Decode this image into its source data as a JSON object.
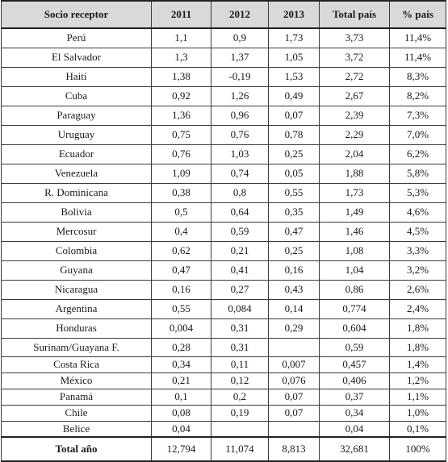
{
  "table": {
    "columns": [
      "Socio receptor",
      "2011",
      "2012",
      "2013",
      "Total país",
      "% país"
    ],
    "rows": [
      [
        "Perú",
        "1,1",
        "0,9",
        "1,73",
        "3,73",
        "11,4%"
      ],
      [
        "El Salvador",
        "1,3",
        "1,37",
        "1,05",
        "3,72",
        "11,4%"
      ],
      [
        "Haití",
        "1,38",
        "-0,19",
        "1,53",
        "2,72",
        "8,3%"
      ],
      [
        "Cuba",
        "0,92",
        "1,26",
        "0,49",
        "2,67",
        "8,2%"
      ],
      [
        "Paraguay",
        "1,36",
        "0,96",
        "0,07",
        "2,39",
        "7,3%"
      ],
      [
        "Uruguay",
        "0,75",
        "0,76",
        "0,78",
        "2,29",
        "7,0%"
      ],
      [
        "Ecuador",
        "0,76",
        "1,03",
        "0,25",
        "2,04",
        "6,2%"
      ],
      [
        "Venezuela",
        "1,09",
        "0,74",
        "0,05",
        "1,88",
        "5,8%"
      ],
      [
        "R. Dominicana",
        "0,38",
        "0,8",
        "0,55",
        "1,73",
        "5,3%"
      ],
      [
        "Bolivia",
        "0,5",
        "0,64",
        "0,35",
        "1,49",
        "4,6%"
      ],
      [
        "Mercosur",
        "0,4",
        "0,59",
        "0,47",
        "1,46",
        "4,5%"
      ],
      [
        "Colombia",
        "0,62",
        "0,21",
        "0,25",
        "1,08",
        "3,3%"
      ],
      [
        "Guyana",
        "0,47",
        "0,41",
        "0,16",
        "1,04",
        "3,2%"
      ],
      [
        "Nicaragua",
        "0,16",
        "0,27",
        "0,43",
        "0,86",
        "2,6%"
      ],
      [
        "Argentina",
        "0,55",
        "0,084",
        "0,14",
        "0,774",
        "2,4%"
      ],
      [
        "Honduras",
        "0,004",
        "0,31",
        "0,29",
        "0,604",
        "1,8%"
      ],
      [
        "Surinam/Guayana F.",
        "0,28",
        "0,31",
        "",
        "0,59",
        "1,8%"
      ],
      [
        "Costa Rica",
        "0,34",
        "0,11",
        "0,007",
        "0,457",
        "1,4%"
      ],
      [
        "México",
        "0,21",
        "0,12",
        "0,076",
        "0,406",
        "1,2%"
      ],
      [
        "Panamá",
        "0,1",
        "0,2",
        "0,07",
        "0,37",
        "1,1%"
      ],
      [
        "Chile",
        "0,08",
        "0,19",
        "0,07",
        "0,34",
        "1,0%"
      ],
      [
        "Belice",
        "0,04",
        "",
        "",
        "0,04",
        "0,1%"
      ]
    ],
    "footer": [
      "Total año",
      "12,794",
      "11,074",
      "8,813",
      "32,681",
      "100%"
    ]
  }
}
